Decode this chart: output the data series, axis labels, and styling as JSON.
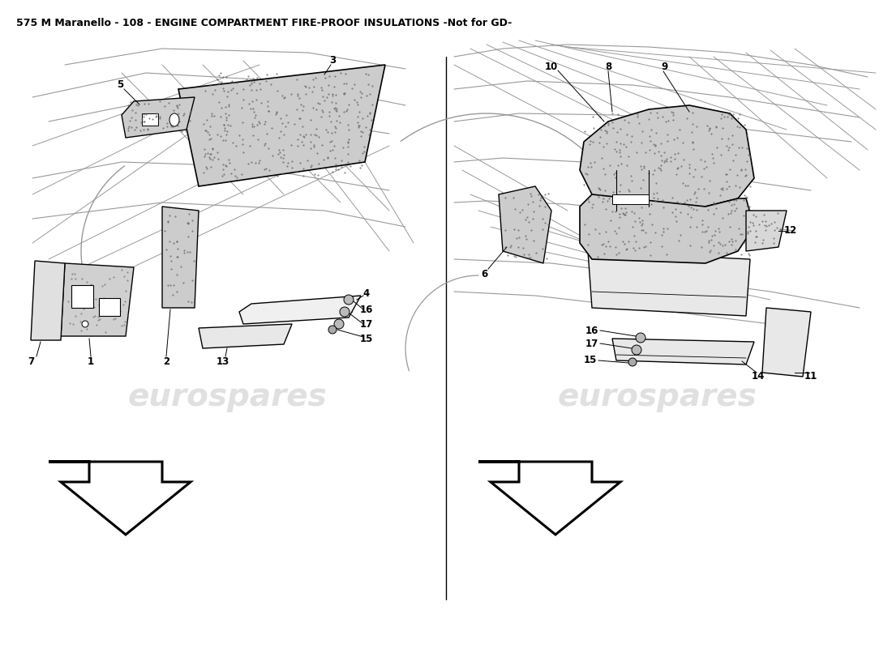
{
  "title": "575 M Maranello - 108 - ENGINE COMPARTMENT FIRE-PROOF INSULATIONS -Not for GD-",
  "title_fontsize": 9,
  "background_color": "#ffffff",
  "watermark_text": "eurospares",
  "watermark_color": "#cccccc",
  "watermark_fontsize": 28,
  "label_fontsize": 8.5,
  "line_color": "#000000",
  "struct_color": "#999999",
  "part_fill": "#d8d8d8",
  "part_edge": "#000000"
}
